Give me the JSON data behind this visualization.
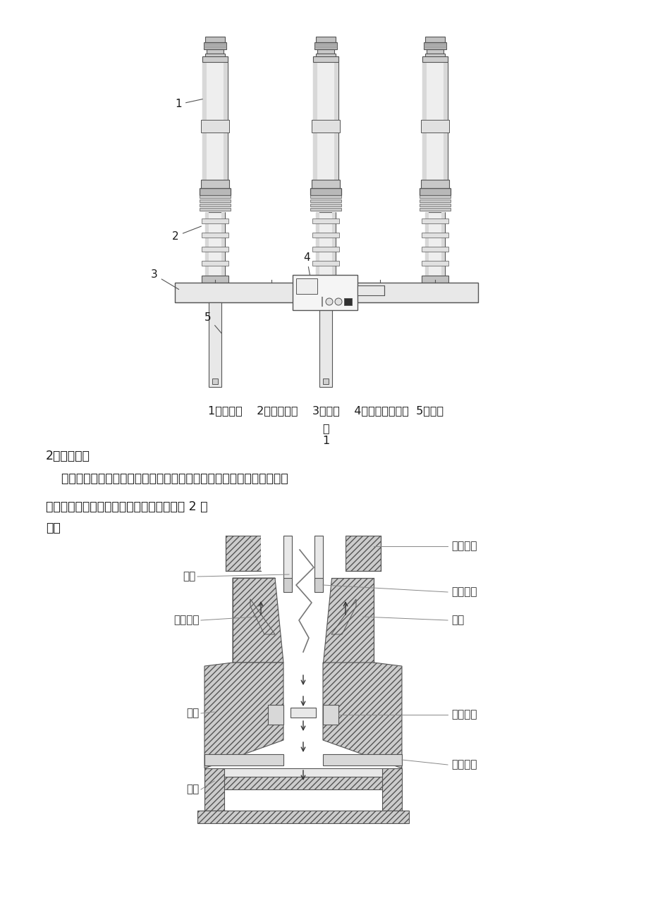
{
  "page_bg": "#ffffff",
  "fig1_caption": "1、灭弧室    2、支柱瓷套    3、框架    4、弹簧操动机构  5、支柱",
  "section2_title": "2、灭弧原理",
  "paragraph1": "    断路器的灭弧室为自能式灭弧结构，断路器分闸时，利用压气缸内的高",
  "paragraph2": "压热膨胀气流熄灭电弧，其灭弧室原理如图 2 所",
  "paragraph3": "示：",
  "fig2_labels_left": [
    "电弧",
    "动弧触头",
    "气缸",
    "活塞"
  ],
  "fig2_labels_right": [
    "静主触头",
    "静弧触头",
    "喷嘴",
    "动主触头",
    "中间触头"
  ],
  "ec": "#555555",
  "fc_light": "#f0f0f0",
  "fc_mid": "#d8d8d8",
  "fc_dark": "#b8b8b8",
  "hatch_fc": "#cccccc",
  "text_color": "#1a1a1a"
}
